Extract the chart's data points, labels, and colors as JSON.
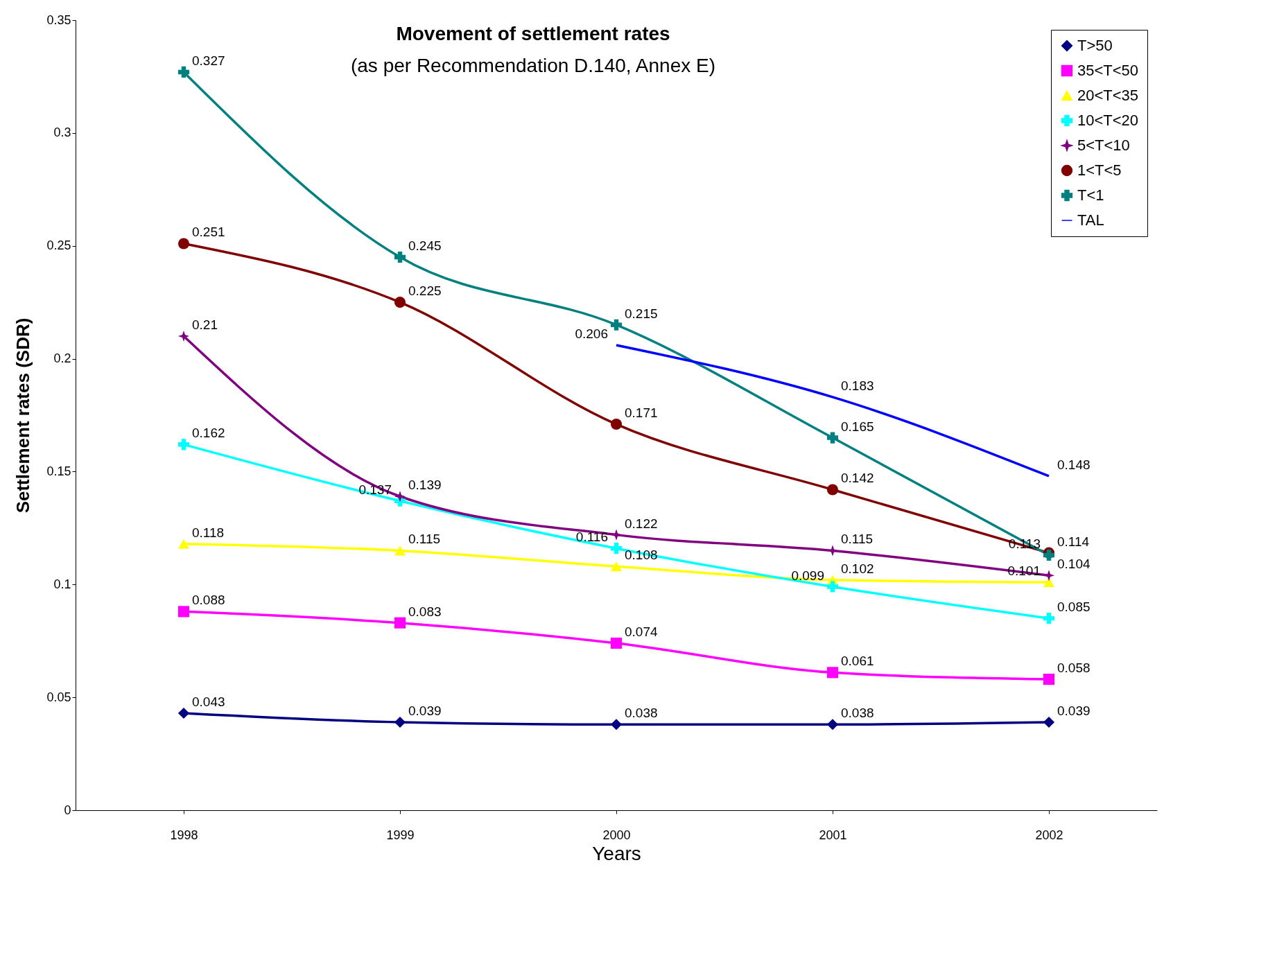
{
  "chart_data": {
    "type": "line",
    "title": "Movement of settlement rates",
    "subtitle": "(as per Recommendation D.140, Annex E)",
    "xlabel": "Years",
    "ylabel": "Settlement rates (SDR)",
    "categories": [
      "1998",
      "1999",
      "2000",
      "2001",
      "2002"
    ],
    "series": [
      {
        "name": "T>50",
        "color": "#000080",
        "marker": "diamond",
        "values": [
          0.043,
          0.039,
          0.038,
          0.038,
          0.039
        ]
      },
      {
        "name": "35<T<50",
        "color": "#ff00ff",
        "marker": "square",
        "values": [
          0.088,
          0.083,
          0.074,
          0.061,
          0.058
        ]
      },
      {
        "name": "20<T<35",
        "color": "#ffff00",
        "marker": "triangle",
        "values": [
          0.118,
          0.115,
          0.108,
          0.102,
          0.101
        ]
      },
      {
        "name": "10<T<20",
        "color": "#00ffff",
        "marker": "cross",
        "values": [
          0.162,
          0.137,
          0.116,
          0.099,
          0.085
        ]
      },
      {
        "name": "5<T<10",
        "color": "#800080",
        "marker": "star",
        "values": [
          0.21,
          0.139,
          0.122,
          0.115,
          0.104
        ]
      },
      {
        "name": "1<T<5",
        "color": "#800000",
        "marker": "circle",
        "values": [
          0.251,
          0.225,
          0.171,
          0.142,
          0.114
        ]
      },
      {
        "name": "T<1",
        "color": "#008080",
        "marker": "cross",
        "values": [
          0.327,
          0.245,
          0.215,
          0.165,
          0.113
        ]
      },
      {
        "name": "TAL",
        "color": "#0000ff",
        "marker": "none",
        "values": [
          null,
          null,
          0.206,
          0.183,
          0.148
        ]
      }
    ],
    "ylim": [
      0,
      0.35
    ],
    "yticks": [
      0,
      0.05,
      0.1,
      0.15,
      0.2,
      0.25,
      0.3,
      0.35
    ],
    "grid": false,
    "legend": "top right",
    "data_labels": true
  }
}
